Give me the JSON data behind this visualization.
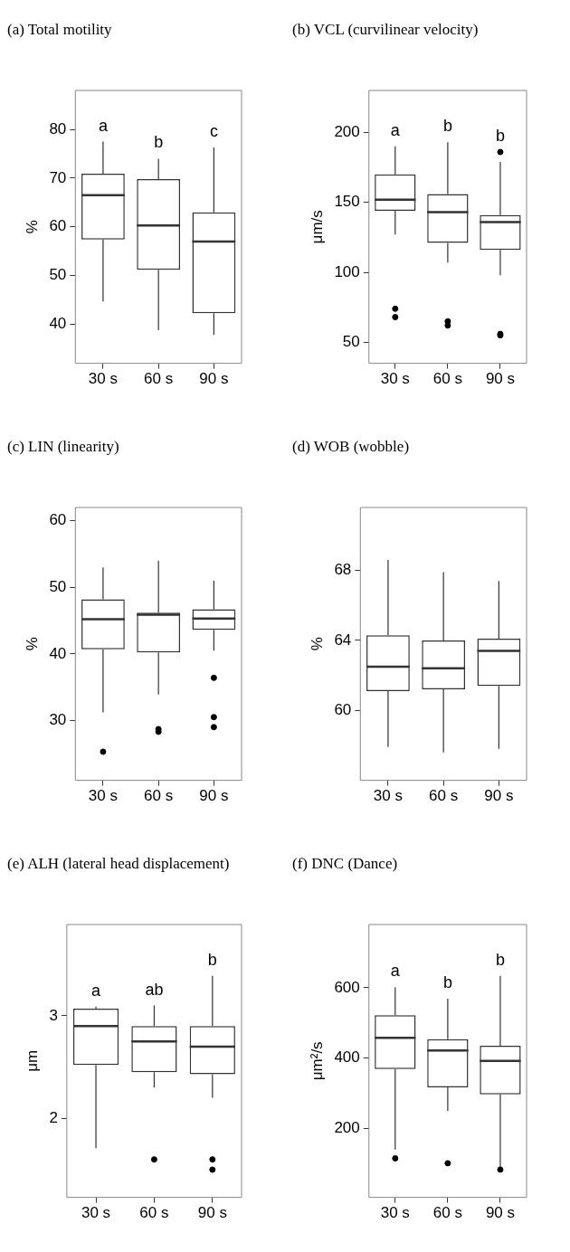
{
  "chart_data": [
    {
      "type": "box",
      "title": "(a) Total motility",
      "ylabel": "%",
      "categories": [
        "30 s",
        "60 s",
        "90 s"
      ],
      "ylim": [
        32,
        88
      ],
      "yticks": [
        40,
        50,
        60,
        70,
        80
      ],
      "boxes": [
        {
          "low": 44.7,
          "q1": 57.4,
          "median": 66.5,
          "q3": 70.9,
          "high": 77.5
        },
        {
          "low": 38.8,
          "q1": 51.2,
          "median": 60.3,
          "q3": 69.8,
          "high": 74.0
        },
        {
          "low": 37.8,
          "q1": 42.3,
          "median": 57.0,
          "q3": 63.0,
          "high": 76.3
        }
      ],
      "annotations": [
        "a",
        "b",
        "c"
      ]
    },
    {
      "type": "box",
      "title": "(b) VCL (curvilinear velocity)",
      "ylabel": "μm/s",
      "categories": [
        "30 s",
        "60 s",
        "90 s"
      ],
      "ylim": [
        35,
        230
      ],
      "yticks": [
        50,
        100,
        150,
        200
      ],
      "boxes": [
        {
          "low": 127,
          "q1": 144,
          "median": 152,
          "q3": 170,
          "high": 190,
          "outliers": [
            74,
            68
          ]
        },
        {
          "low": 107,
          "q1": 121,
          "median": 143,
          "q3": 156,
          "high": 193,
          "outliers": [
            65,
            62
          ]
        },
        {
          "low": 98,
          "q1": 116,
          "median": 136,
          "q3": 141,
          "high": 179,
          "outliers": [
            186,
            56,
            55
          ]
        }
      ],
      "annotations": [
        "a",
        "b",
        "b"
      ]
    },
    {
      "type": "box",
      "title": "(c) LIN (linearity)",
      "ylabel": "%",
      "categories": [
        "30 s",
        "60 s",
        "90 s"
      ],
      "ylim": [
        21,
        62
      ],
      "yticks": [
        30,
        40,
        50,
        60
      ],
      "boxes": [
        {
          "low": 31.2,
          "q1": 40.7,
          "median": 45.2,
          "q3": 48.2,
          "high": 53.0,
          "outliers": [
            25.3
          ]
        },
        {
          "low": 33.9,
          "q1": 40.2,
          "median": 45.9,
          "q3": 46.2,
          "high": 54.0,
          "outliers": [
            28.7,
            28.3
          ]
        },
        {
          "low": 40.5,
          "q1": 43.6,
          "median": 45.3,
          "q3": 46.7,
          "high": 51.0,
          "outliers": [
            36.4,
            30.5,
            29.0
          ]
        }
      ]
    },
    {
      "type": "box",
      "title": "(d) WOB (wobble)",
      "ylabel": "%",
      "categories": [
        "30 s",
        "60 s",
        "90 s"
      ],
      "ylim": [
        56,
        71.6
      ],
      "yticks": [
        60,
        64,
        68
      ],
      "boxes": [
        {
          "low": 57.9,
          "q1": 61.1,
          "median": 62.5,
          "q3": 64.3,
          "high": 68.6
        },
        {
          "low": 57.6,
          "q1": 61.2,
          "median": 62.4,
          "q3": 64.0,
          "high": 67.9
        },
        {
          "low": 57.8,
          "q1": 61.4,
          "median": 63.4,
          "q3": 64.1,
          "high": 67.4
        }
      ]
    },
    {
      "type": "box",
      "title": "(e) ALH (lateral head displacement)",
      "ylabel": "μm",
      "categories": [
        "30 s",
        "60 s",
        "90 s"
      ],
      "ylim": [
        1.23,
        3.89
      ],
      "yticks": [
        2,
        3
      ],
      "boxes": [
        {
          "low": 1.71,
          "q1": 2.52,
          "median": 2.9,
          "q3": 3.07,
          "high": 3.09
        },
        {
          "low": 2.3,
          "q1": 2.45,
          "median": 2.75,
          "q3": 2.9,
          "high": 3.1,
          "outliers": [
            1.6
          ]
        },
        {
          "low": 2.2,
          "q1": 2.43,
          "median": 2.7,
          "q3": 2.9,
          "high": 3.39,
          "outliers": [
            1.6,
            1.5
          ]
        }
      ],
      "annotations": [
        "a",
        "ab",
        "b"
      ]
    },
    {
      "type": "box",
      "title": "(f) DNC (Dance)",
      "ylabel": "μm²/s",
      "categories": [
        "30 s",
        "60 s",
        "90 s"
      ],
      "ylim": [
        4,
        780
      ],
      "yticks": [
        200,
        400,
        600
      ],
      "boxes": [
        {
          "low": 140,
          "q1": 369,
          "median": 458,
          "q3": 522,
          "high": 602,
          "outliers": [
            115
          ]
        },
        {
          "low": 250,
          "q1": 317,
          "median": 422,
          "q3": 454,
          "high": 569,
          "outliers": [
            101
          ]
        },
        {
          "low": 90,
          "q1": 297,
          "median": 392,
          "q3": 435,
          "high": 634,
          "outliers": [
            83
          ]
        }
      ],
      "annotations": [
        "a",
        "b",
        "b"
      ]
    }
  ]
}
